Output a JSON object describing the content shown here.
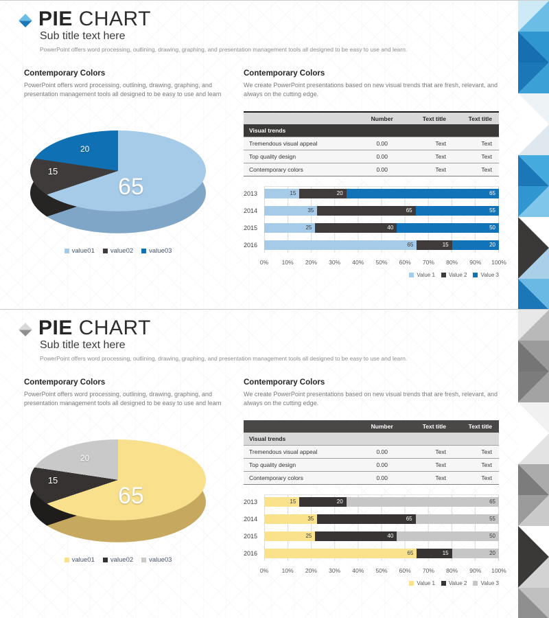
{
  "chart_data": [
    {
      "id": "pie-blue",
      "type": "pie",
      "title": "",
      "labels": [
        "value01",
        "value02",
        "value03"
      ],
      "values": [
        65,
        15,
        20
      ],
      "data_labels": [
        "65",
        "15",
        "20"
      ],
      "colors": [
        "#a6cbe9",
        "#3f3b3b",
        "#1070b4"
      ],
      "colors_dark": [
        "#7fa6c6",
        "#272424",
        "#0a5286"
      ],
      "legend_position": "bottom"
    },
    {
      "id": "bars-blue",
      "type": "bar",
      "stacked": "100%",
      "orientation": "horizontal",
      "categories": [
        "2013",
        "2014",
        "2015",
        "2016"
      ],
      "series": [
        {
          "name": "Value 1",
          "values": [
            15,
            35,
            25,
            65
          ],
          "color": "#a6cbe9",
          "label_color": "#3a3a3a"
        },
        {
          "name": "Value 2",
          "values": [
            20,
            65,
            40,
            15
          ],
          "color": "#3f3b3b",
          "label_color": "#ffffff"
        },
        {
          "name": "Value 3",
          "values": [
            65,
            55,
            50,
            20
          ],
          "color": "#1273b8",
          "label_color": "#ffffff"
        }
      ],
      "x_ticks": [
        "0%",
        "10%",
        "20%",
        "30%",
        "40%",
        "50%",
        "60%",
        "70%",
        "80%",
        "90%",
        "100%"
      ],
      "xlim": [
        0,
        100
      ],
      "grid": "vertical",
      "legend_position": "bottom-right"
    },
    {
      "id": "pie-gold",
      "type": "pie",
      "title": "",
      "labels": [
        "value01",
        "value02",
        "value03"
      ],
      "values": [
        65,
        15,
        20
      ],
      "data_labels": [
        "65",
        "15",
        "20"
      ],
      "colors": [
        "#f8e08d",
        "#363232",
        "#c9c9c9"
      ],
      "colors_dark": [
        "#c6a95e",
        "#1f1c1c",
        "#9e9e9e"
      ],
      "legend_position": "bottom"
    },
    {
      "id": "bars-gold",
      "type": "bar",
      "stacked": "100%",
      "orientation": "horizontal",
      "categories": [
        "2013",
        "2014",
        "2015",
        "2016"
      ],
      "series": [
        {
          "name": "Value 1",
          "values": [
            15,
            35,
            25,
            65
          ],
          "color": "#fae28d",
          "label_color": "#3a3a3a"
        },
        {
          "name": "Value 2",
          "values": [
            20,
            65,
            40,
            15
          ],
          "color": "#383434",
          "label_color": "#ffffff"
        },
        {
          "name": "Value 3",
          "values": [
            65,
            55,
            50,
            20
          ],
          "color": "#c6c6c6",
          "label_color": "#3a3a3a"
        }
      ],
      "x_ticks": [
        "0%",
        "10%",
        "20%",
        "30%",
        "40%",
        "50%",
        "60%",
        "70%",
        "80%",
        "90%",
        "100%"
      ],
      "xlim": [
        0,
        100
      ],
      "grid": "vertical",
      "legend_position": "bottom-right"
    }
  ],
  "slides": [
    {
      "name": "blue",
      "header": {
        "title_bold": "PIE",
        "title_light": "CHART",
        "subtitle": "Sub title text here",
        "description": "PowerPoint offers word processing, outlining, drawing, graphing, and presentation management tools all designed to be easy to use and learn."
      },
      "left": {
        "heading": "Contemporary Colors",
        "body": "PowerPoint offers word processing, outlining, drawing, graphing, and presentation management tools all designed to be easy to use and learn"
      },
      "right": {
        "heading": "Contemporary Colors",
        "body": "We create PowerPoint presentations based on new visual trends that are fresh, relevant, and always on the cutting edge."
      },
      "table": {
        "columns": [
          "",
          "Number",
          "Text title",
          "Text title"
        ],
        "section_row": "Visual trends",
        "rows": [
          [
            "Tremendous visual appeal",
            "0.00",
            "Text",
            "Text"
          ],
          [
            "Top quality design",
            "0.00",
            "Text",
            "Text"
          ],
          [
            "Contemporary colors",
            "0.00",
            "Text",
            "Text"
          ]
        ]
      },
      "theme": {
        "acc1": "#6cbde6",
        "acc2": "#1b77b8",
        "thead_bg": "#d9d9d9",
        "thead_color": "#262626",
        "tsub_bg": "#3b3838",
        "tsub_color": "#ffffff",
        "ttop": "2px solid #1a1a1a",
        "mosaic": [
          [
            "#cfeaf7",
            "#6cbde6"
          ],
          [
            "#2f96cf",
            "#156fb0"
          ],
          [
            "#1b77b8",
            "#3ba0d6"
          ],
          [
            "#eef3f6",
            "#ffffff"
          ],
          [
            "#ffffff",
            "#dfe8ee"
          ],
          [
            "#45aadd",
            "#1b77b8"
          ],
          [
            "#2f96cf",
            "#7fc6ea"
          ],
          [
            "#ffffff",
            "#3b3838"
          ],
          [
            "#3b3838",
            "#a9cfe9"
          ],
          [
            "#69b9e4",
            "#1b77b8"
          ]
        ]
      }
    },
    {
      "name": "gold",
      "header": {
        "title_bold": "PIE",
        "title_light": "CHART",
        "subtitle": "Sub title text here",
        "description": "PowerPoint offers word processing, outlining, drawing, graphing, and presentation management tools all designed to be easy to use and learn."
      },
      "left": {
        "heading": "Contemporary Colors",
        "body": "PowerPoint offers word processing, outlining, drawing, graphing, and presentation management tools all designed to be easy to use and learn"
      },
      "right": {
        "heading": "Contemporary Colors",
        "body": "We create PowerPoint presentations based on new visual trends that are fresh, relevant, and always on the cutting edge."
      },
      "table": {
        "columns": [
          "",
          "Number",
          "Text title",
          "Text title"
        ],
        "section_row": "Visual trends",
        "rows": [
          [
            "Tremendous visual appeal",
            "0.00",
            "Text",
            "Text"
          ],
          [
            "Top quality design",
            "0.00",
            "Text",
            "Text"
          ],
          [
            "Contemporary colors",
            "0.00",
            "Text",
            "Text"
          ]
        ]
      },
      "theme": {
        "acc1": "#d9d9d9",
        "acc2": "#8f8f8f",
        "thead_bg": "#4a4747",
        "thead_color": "#ffffff",
        "tsub_bg": "#d9d9d9",
        "tsub_color": "#262626",
        "ttop": "none",
        "mosaic": [
          [
            "#e8e8e8",
            "#b9b9b9"
          ],
          [
            "#9b9b9b",
            "#757575"
          ],
          [
            "#7c7c7c",
            "#a3a3a3"
          ],
          [
            "#f1f1f1",
            "#ffffff"
          ],
          [
            "#ffffff",
            "#e3e3e3"
          ],
          [
            "#ababab",
            "#7c7c7c"
          ],
          [
            "#9b9b9b",
            "#cacaca"
          ],
          [
            "#ffffff",
            "#3b3838"
          ],
          [
            "#3b3838",
            "#d3d3d3"
          ],
          [
            "#c0c0c0",
            "#8f8f8f"
          ]
        ]
      }
    }
  ]
}
